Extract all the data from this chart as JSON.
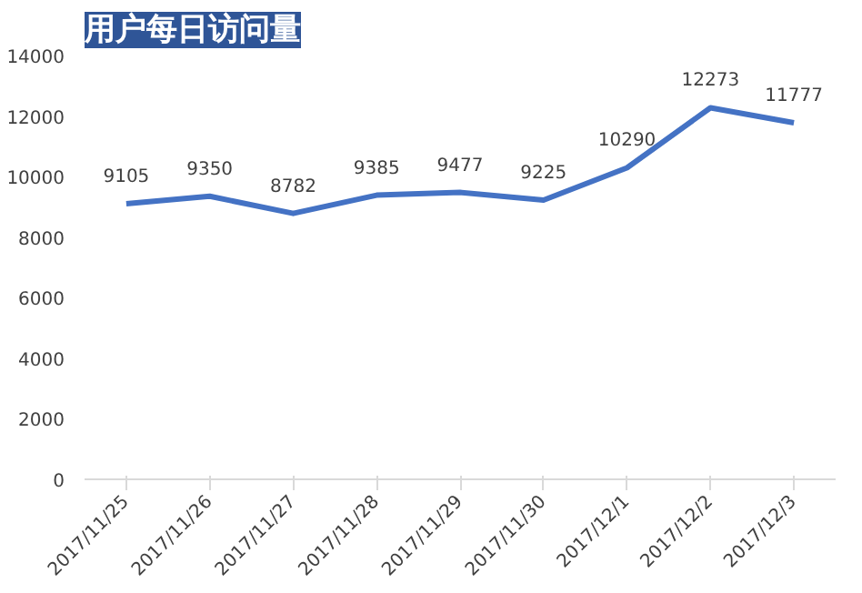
{
  "chart_data": {
    "type": "line",
    "title": "用户每日访问量",
    "categories": [
      "2017/11/25",
      "2017/11/26",
      "2017/11/27",
      "2017/11/28",
      "2017/11/29",
      "2017/11/30",
      "2017/12/1",
      "2017/12/2",
      "2017/12/3"
    ],
    "series": [
      {
        "color": "#4472c4",
        "values": [
          9105,
          9350,
          8782,
          9385,
          9477,
          9225,
          10290,
          12273,
          11777
        ]
      }
    ],
    "ylim": [
      0,
      14000
    ],
    "yticks": [
      0,
      2000,
      4000,
      6000,
      8000,
      10000,
      12000,
      14000
    ],
    "data_labels": true,
    "grid": false,
    "marker": "none",
    "line_style": "solid"
  }
}
